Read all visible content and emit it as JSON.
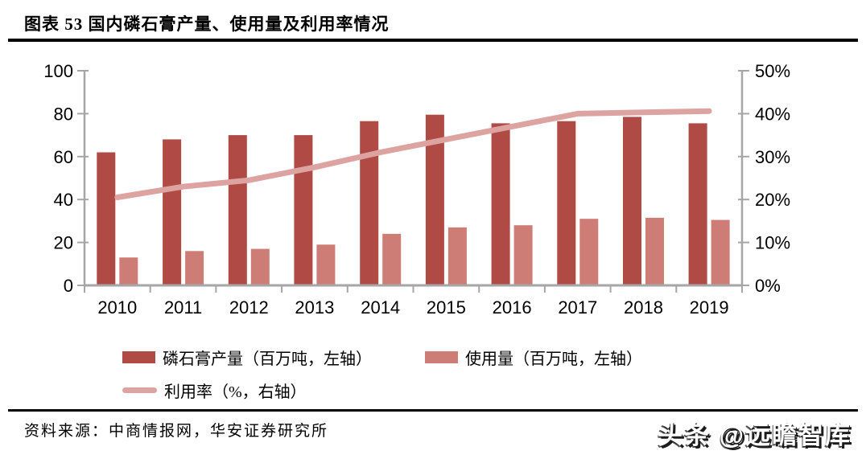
{
  "figure": {
    "title": "图表 53 国内磷石膏产量、使用量及利用率情况",
    "source": "资料来源：中商情报网，华安证券研究所",
    "watermark": "头条 @远瞻智库"
  },
  "chart_data": {
    "type": "bar",
    "subtype": "grouped-bars-with-line",
    "title": "国内磷石膏产量、使用量及利用率情况",
    "categories": [
      "2010",
      "2011",
      "2012",
      "2013",
      "2014",
      "2015",
      "2016",
      "2017",
      "2018",
      "2019"
    ],
    "series": [
      {
        "name": "磷石膏产量（百万吨，左轴）",
        "type": "bar",
        "axis": "left",
        "color": "#AF4A45",
        "values": [
          62,
          68,
          70,
          70,
          76.5,
          79.5,
          75.5,
          76.5,
          78.5,
          75.5
        ]
      },
      {
        "name": "使用量（百万吨，左轴）",
        "type": "bar",
        "axis": "left",
        "color": "#CD7C76",
        "values": [
          13,
          16,
          17,
          19,
          24,
          27,
          28,
          31,
          31.5,
          30.5
        ]
      },
      {
        "name": "利用率（%，右轴）",
        "type": "line",
        "axis": "right",
        "color": "#DDA3A0",
        "values": [
          20.5,
          23,
          24.5,
          27.5,
          31,
          34,
          37,
          40,
          40.3,
          40.6
        ]
      }
    ],
    "left_axis": {
      "min": 0,
      "max": 100,
      "ticks": [
        "0",
        "20",
        "40",
        "60",
        "80",
        "100"
      ]
    },
    "right_axis": {
      "min": 0,
      "max": 50,
      "ticks": [
        "0%",
        "10%",
        "20%",
        "30%",
        "40%",
        "50%"
      ]
    },
    "grid": false,
    "legend_position": "bottom"
  },
  "colors": {
    "axis": "#A6A6A6",
    "text": "#000000",
    "rule": "#000000"
  }
}
